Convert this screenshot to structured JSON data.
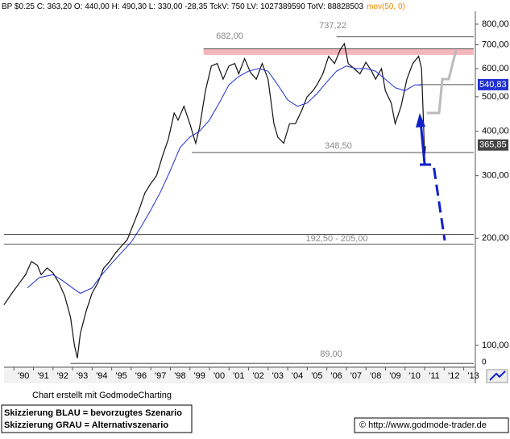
{
  "chart_data": {
    "type": "line",
    "title": "BP $0.25 C: 363,20 O: 440,00 H: 490,30 L: 330,00 -28,35 TckV: 750 LV: 1027389590 TotV: 88828503",
    "log_scale": true,
    "xlim": [
      1989.0,
      2013.1
    ],
    "xticks": [
      {
        "value": 1990,
        "label": "'90"
      },
      {
        "value": 1991,
        "label": "'91"
      },
      {
        "value": 1992,
        "label": "'92"
      },
      {
        "value": 1993,
        "label": "'93"
      },
      {
        "value": 1994,
        "label": "'94"
      },
      {
        "value": 1995,
        "label": "'95"
      },
      {
        "value": 1996,
        "label": "'96"
      },
      {
        "value": 1997,
        "label": "'97"
      },
      {
        "value": 1998,
        "label": "'98"
      },
      {
        "value": 1999,
        "label": "'99"
      },
      {
        "value": 2000,
        "label": "'00"
      },
      {
        "value": 2001,
        "label": "'01"
      },
      {
        "value": 2002,
        "label": "'02"
      },
      {
        "value": 2003,
        "label": "'03"
      },
      {
        "value": 2004,
        "label": "'04"
      },
      {
        "value": 2005,
        "label": "'05"
      },
      {
        "value": 2006,
        "label": "'06"
      },
      {
        "value": 2007,
        "label": "'07"
      },
      {
        "value": 2008,
        "label": "'08"
      },
      {
        "value": 2009,
        "label": "'09"
      },
      {
        "value": 2010,
        "label": "'10"
      },
      {
        "value": 2011,
        "label": "'11"
      },
      {
        "value": 2012,
        "label": "'12"
      },
      {
        "value": 2013,
        "label": "'13"
      }
    ],
    "ylim": [
      86.8,
      856
    ],
    "yticks": [
      {
        "value": 800,
        "label": "800,00"
      },
      {
        "value": 700,
        "label": "700,00"
      },
      {
        "value": 600,
        "label": "600,00"
      },
      {
        "value": 500,
        "label": "500,00"
      },
      {
        "value": 400,
        "label": "400,00"
      },
      {
        "value": 300,
        "label": "300,00"
      },
      {
        "value": 200,
        "label": "200,00"
      },
      {
        "value": 100,
        "label": "100,00"
      }
    ],
    "corner_label": "0",
    "series": [
      {
        "color": "#111111",
        "x": [
          1989.0,
          1989.4,
          1989.8,
          1990.1,
          1990.4,
          1990.7,
          1990.9,
          1991.2,
          1991.5,
          1991.8,
          1992.1,
          1992.4,
          1992.6,
          1992.75,
          1992.9,
          1993.2,
          1993.5,
          1993.8,
          1994.1,
          1994.4,
          1994.7,
          1995.0,
          1995.3,
          1995.6,
          1995.9,
          1996.2,
          1996.5,
          1996.8,
          1997.1,
          1997.4,
          1997.7,
          1997.9,
          1998.2,
          1998.5,
          1998.8,
          1999.0,
          1999.3,
          1999.6,
          1999.9,
          2000.2,
          2000.5,
          2000.8,
          2001.0,
          2001.3,
          2001.6,
          2001.9,
          2002.2,
          2002.5,
          2002.8,
          2003.0,
          2003.3,
          2003.6,
          2003.9,
          2004.2,
          2004.5,
          2004.8,
          2005.0,
          2005.3,
          2005.6,
          2005.9,
          2006.2,
          2006.4,
          2006.6,
          2006.9,
          2007.2,
          2007.5,
          2007.8,
          2008.0,
          2008.3,
          2008.5,
          2008.8,
          2009.0,
          2009.3,
          2009.6,
          2009.9,
          2010.2,
          2010.35,
          2010.45,
          2010.5,
          2010.55
        ],
        "values": [
          130,
          140,
          150,
          158,
          172,
          168,
          158,
          165,
          160,
          150,
          138,
          120,
          100,
          92,
          108,
          125,
          140,
          150,
          165,
          172,
          182,
          190,
          198,
          218,
          240,
          268,
          285,
          300,
          340,
          380,
          450,
          430,
          470,
          420,
          370,
          410,
          520,
          610,
          620,
          560,
          610,
          620,
          580,
          640,
          585,
          560,
          620,
          560,
          420,
          385,
          370,
          420,
          420,
          455,
          500,
          520,
          540,
          580,
          650,
          620,
          680,
          705,
          620,
          600,
          580,
          625,
          590,
          560,
          600,
          520,
          480,
          420,
          470,
          560,
          620,
          650,
          600,
          420,
          340,
          363.2
        ]
      },
      {
        "name": "mov(50, 0)",
        "color": "#1f2fd0",
        "x": [
          1990.2,
          1990.8,
          1991.5,
          1992.0,
          1992.5,
          1992.9,
          1993.5,
          1994.0,
          1994.5,
          1995.0,
          1995.5,
          1996.0,
          1996.5,
          1997.0,
          1997.5,
          1998.0,
          1998.5,
          1999.0,
          1999.5,
          2000.0,
          2000.5,
          2001.0,
          2001.5,
          2002.0,
          2002.5,
          2003.0,
          2003.5,
          2004.0,
          2004.5,
          2005.0,
          2005.5,
          2006.0,
          2006.5,
          2007.0,
          2007.5,
          2008.0,
          2008.5,
          2009.0,
          2009.5,
          2010.0,
          2010.4
        ],
        "values": [
          145,
          155,
          158,
          152,
          145,
          140,
          145,
          158,
          170,
          182,
          195,
          215,
          240,
          270,
          310,
          360,
          385,
          400,
          430,
          480,
          540,
          570,
          590,
          600,
          590,
          540,
          490,
          470,
          480,
          510,
          550,
          590,
          610,
          600,
          600,
          590,
          560,
          530,
          520,
          540,
          540
        ]
      }
    ],
    "band": {
      "values": [
        656,
        684
      ],
      "color": "#f4b6bc"
    },
    "hlines": [
      {
        "value": 737.22,
        "from": 2006.0
      },
      {
        "value": 682,
        "from": 1999.2
      },
      {
        "value": 348.5,
        "from": 1998.6
      },
      {
        "value": 205,
        "from": 1989.0
      },
      {
        "value": 192.5,
        "from": 1989.0
      },
      {
        "value": 89,
        "from": 1992.4
      },
      {
        "value": 540.83,
        "from": 2010.2
      }
    ],
    "annotations": [
      "737,22",
      "682,00",
      "348,50",
      "192,50 - 205,00",
      "89,00"
    ],
    "price_tags": [
      {
        "value": 540.83,
        "label": "540,83",
        "color": "#1f2fd0"
      },
      {
        "value": 365.85,
        "label": "365,85",
        "color": "#444444"
      }
    ],
    "credit": "Chart erstellt mit GodmodeCharting",
    "notes": [
      "Skizzierung BLAU = bevorzugtes Szenario",
      "Skizzierung GRAU = Alternativszenario"
    ],
    "source": "© http://www.godmode-trader.de"
  }
}
